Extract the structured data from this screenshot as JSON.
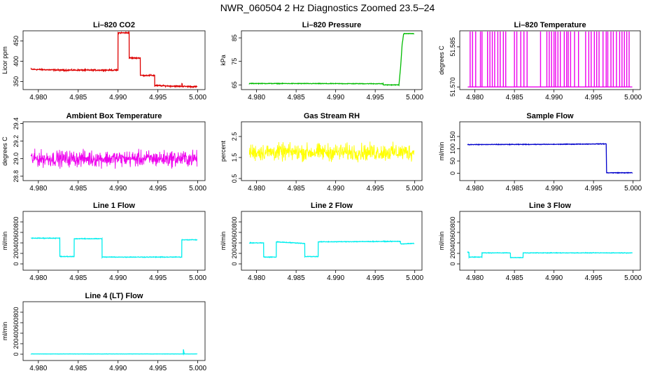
{
  "page": {
    "title": "NWR_060504  2 Hz Diagnostics Zoomed 23.5–24"
  },
  "x_axis": {
    "range": [
      4.979,
      5.0
    ],
    "ticks": [
      4.98,
      4.985,
      4.99,
      4.995,
      5.0
    ],
    "tick_labels": [
      "4.980",
      "4.985",
      "4.990",
      "4.995",
      "5.000"
    ]
  },
  "chart_data": [
    {
      "type": "line",
      "title": "Li–820 CO2",
      "ylabel": "Licor ppm",
      "color": "#dd0000",
      "ylim": [
        330,
        475
      ],
      "yticks": [
        350,
        400,
        450
      ],
      "ytick_labels": [
        "350",
        "400",
        "450"
      ],
      "noise": 1.5,
      "series": [
        {
          "x": [
            4.9791,
            4.983,
            4.98999,
            4.99,
            4.99139,
            4.9914,
            4.99279,
            4.9928,
            4.99459,
            4.9946,
            4.998,
            4.99801,
            4.99805,
            4.99806,
            4.9999
          ],
          "y": [
            380,
            378,
            378,
            470,
            470,
            408,
            408,
            365,
            365,
            340,
            338,
            345,
            345,
            338,
            337
          ]
        }
      ]
    },
    {
      "type": "line",
      "title": "Li–820 Pressure",
      "ylabel": "kPa",
      "color": "#00bb00",
      "ylim": [
        63,
        88
      ],
      "yticks": [
        65,
        75,
        85
      ],
      "ytick_labels": [
        "65",
        "75",
        "85"
      ],
      "noise": 0.12,
      "series": [
        {
          "x": [
            4.9791,
            4.996,
            4.99601,
            4.998,
            4.9982,
            4.9984,
            4.9986,
            4.9999
          ],
          "y": [
            65.6,
            65.5,
            65.0,
            65.0,
            72,
            82,
            86.8,
            86.8
          ]
        }
      ]
    },
    {
      "type": "line",
      "title": "Li–820 Temperature",
      "ylabel": "degrees C",
      "color": "#ee00ee",
      "ylim": [
        51.569,
        51.591
      ],
      "yticks": [
        51.57,
        51.585
      ],
      "ytick_labels": [
        "51.570",
        "51.585"
      ],
      "noise": 0,
      "series": [
        {
          "x": [
            4.9791,
            4.9999
          ],
          "y": [
            51.57,
            51.57
          ]
        }
      ],
      "spikes": {
        "top": 51.591,
        "x": [
          4.9794,
          4.9797,
          4.9801,
          4.9807,
          4.9809,
          4.9816,
          4.9819,
          4.9822,
          4.9825,
          4.9829,
          4.9832,
          4.9836,
          4.9839,
          4.985,
          4.9853,
          4.9858,
          4.9862,
          4.9866,
          4.9883,
          4.9891,
          4.9894,
          4.9897,
          4.99,
          4.9902,
          4.9905,
          4.9908,
          4.9913,
          4.9916,
          4.9918,
          4.9921,
          4.9926,
          4.9931,
          4.994,
          4.9944,
          4.9947,
          4.9951,
          4.9954,
          4.9957,
          4.9962,
          4.9966,
          4.9968,
          4.9972,
          4.9975,
          4.9979,
          4.9983,
          4.9986,
          4.9989,
          4.9992,
          4.9995
        ]
      }
    },
    {
      "type": "line",
      "title": "Ambient Box Temperature",
      "ylabel": "degrees C",
      "color": "#ee00ee",
      "ylim": [
        28.75,
        29.42
      ],
      "yticks": [
        28.8,
        29.0,
        29.2,
        29.4
      ],
      "ytick_labels": [
        "28.8",
        "29.0",
        "29.2",
        "29.4"
      ],
      "noise": 0.09,
      "series": [
        {
          "x": [
            4.9791,
            4.9999
          ],
          "y": [
            29.0,
            29.0
          ]
        }
      ]
    },
    {
      "type": "line",
      "title": "Gas Stream RH",
      "ylabel": "percent",
      "color": "#ffff00",
      "ylim": [
        0.4,
        3.2
      ],
      "yticks": [
        0.5,
        1.5,
        2.5
      ],
      "ytick_labels": [
        "0.5",
        "1.5",
        "2.5"
      ],
      "noise": 0.4,
      "series": [
        {
          "x": [
            4.9791,
            4.9999
          ],
          "y": [
            1.75,
            1.75
          ]
        }
      ]
    },
    {
      "type": "line",
      "title": "Sample Flow",
      "ylabel": "ml/min",
      "color": "#0000cc",
      "ylim": [
        -30,
        210
      ],
      "yticks": [
        0,
        50,
        100,
        150
      ],
      "ytick_labels": [
        "0",
        "50",
        "100",
        "150"
      ],
      "noise": 1.2,
      "series": [
        {
          "x": [
            4.9791,
            4.99,
            4.9966,
            4.99665,
            4.9999
          ],
          "y": [
            117,
            118,
            120,
            2,
            2
          ]
        }
      ]
    },
    {
      "type": "line",
      "title": "Line 1 Flow",
      "ylabel": "ml/min",
      "color": "#00eeee",
      "ylim": [
        -120,
        1000
      ],
      "yticks": [
        0,
        200,
        400,
        600,
        800
      ],
      "ytick_labels": [
        "0",
        "200",
        "400",
        "600",
        "800"
      ],
      "noise": 6,
      "series": [
        {
          "x": [
            4.9791,
            4.98269,
            4.9827,
            4.98449,
            4.9845,
            4.98799,
            4.988,
            4.99799,
            4.998,
            4.9999
          ],
          "y": [
            490,
            490,
            140,
            140,
            480,
            480,
            130,
            130,
            460,
            460
          ]
        }
      ]
    },
    {
      "type": "line",
      "title": "Line 2 Flow",
      "ylabel": "ml/min",
      "color": "#00eeee",
      "ylim": [
        -120,
        1000
      ],
      "yticks": [
        0,
        200,
        400,
        600,
        800
      ],
      "ytick_labels": [
        "0",
        "200",
        "400",
        "600",
        "800"
      ],
      "noise": 6,
      "series": [
        {
          "x": [
            4.9791,
            4.98089,
            4.9809,
            4.98249,
            4.9825,
            4.98609,
            4.9861,
            4.98779,
            4.9878,
            4.99819,
            4.9982,
            4.9999
          ],
          "y": [
            400,
            400,
            130,
            130,
            420,
            390,
            140,
            140,
            420,
            430,
            380,
            390
          ]
        }
      ]
    },
    {
      "type": "line",
      "title": "Line 3 Flow",
      "ylabel": "ml/min",
      "color": "#00eeee",
      "ylim": [
        -120,
        1000
      ],
      "yticks": [
        0,
        200,
        400,
        600,
        800
      ],
      "ytick_labels": [
        "0",
        "200",
        "400",
        "600",
        "800"
      ],
      "noise": 5,
      "series": [
        {
          "x": [
            4.9791,
            4.97925,
            4.97926,
            4.98089,
            4.9809,
            4.98449,
            4.9845,
            4.98609,
            4.9861,
            4.9999
          ],
          "y": [
            220,
            220,
            130,
            130,
            210,
            210,
            120,
            120,
            210,
            210
          ]
        }
      ]
    },
    {
      "type": "line",
      "title": "Line 4 (LT) Flow",
      "ylabel": "ml/min",
      "color": "#00eeee",
      "ylim": [
        -120,
        1000
      ],
      "yticks": [
        0,
        200,
        400,
        600,
        800
      ],
      "ytick_labels": [
        "0",
        "200",
        "400",
        "600",
        "800"
      ],
      "noise": 2,
      "series": [
        {
          "x": [
            4.9791,
            4.99819,
            4.9982,
            4.9983,
            4.99831,
            4.9999
          ],
          "y": [
            5,
            5,
            90,
            10,
            5,
            5
          ]
        }
      ]
    }
  ]
}
